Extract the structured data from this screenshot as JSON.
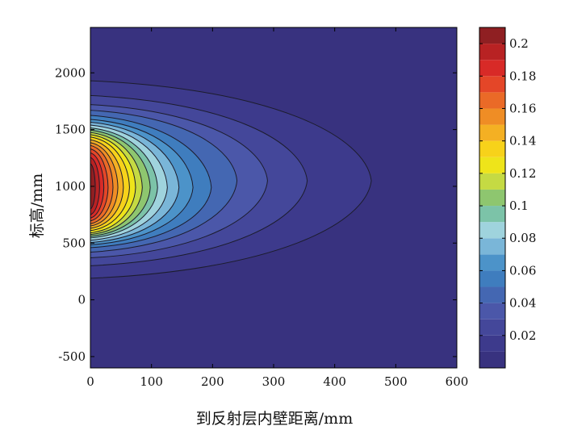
{
  "chart_data": {
    "type": "heatmap",
    "subtype": "filled-contour",
    "title": "",
    "xlabel": "到反射层内壁距离/mm",
    "ylabel": "标高/mm",
    "xlim": [
      0,
      600
    ],
    "ylim": [
      -600,
      2400
    ],
    "xticks": [
      "0",
      "100",
      "200",
      "300",
      "400",
      "500",
      "600"
    ],
    "yticks": [
      "-500",
      "0",
      "500",
      "1000",
      "1500",
      "2000"
    ],
    "grid": false,
    "colorbar": {
      "position": "right",
      "range": [
        0,
        0.21
      ],
      "ticks": [
        "0.02",
        "0.04",
        "0.06",
        "0.08",
        "0.1",
        "0.12",
        "0.14",
        "0.16",
        "0.18",
        "0.2"
      ],
      "colormap": "jet"
    },
    "background_color": "#38327f",
    "peak": {
      "x": 0,
      "y": 950,
      "value": 0.21
    },
    "contour_levels": [
      {
        "level": 0.01,
        "color": "#3d3a8c",
        "x_extent": 460,
        "y_bottom": 190,
        "y_top": 1930
      },
      {
        "level": 0.02,
        "color": "#44479a",
        "x_extent": 355,
        "y_bottom": 300,
        "y_top": 1800
      },
      {
        "level": 0.03,
        "color": "#4b57a9",
        "x_extent": 290,
        "y_bottom": 370,
        "y_top": 1720
      },
      {
        "level": 0.04,
        "color": "#4467b2",
        "x_extent": 240,
        "y_bottom": 420,
        "y_top": 1670
      },
      {
        "level": 0.05,
        "color": "#3f7dbe",
        "x_extent": 198,
        "y_bottom": 460,
        "y_top": 1625
      },
      {
        "level": 0.06,
        "color": "#4c93c9",
        "x_extent": 168,
        "y_bottom": 485,
        "y_top": 1590
      },
      {
        "level": 0.07,
        "color": "#7ab6d8",
        "x_extent": 145,
        "y_bottom": 505,
        "y_top": 1565
      },
      {
        "level": 0.08,
        "color": "#9fd3dd",
        "x_extent": 126,
        "y_bottom": 525,
        "y_top": 1540
      },
      {
        "level": 0.09,
        "color": "#7cc3a8",
        "x_extent": 110,
        "y_bottom": 545,
        "y_top": 1515
      },
      {
        "level": 0.1,
        "color": "#8ec66f",
        "x_extent": 98,
        "y_bottom": 560,
        "y_top": 1495
      },
      {
        "level": 0.11,
        "color": "#c5da43",
        "x_extent": 85,
        "y_bottom": 575,
        "y_top": 1475
      },
      {
        "level": 0.12,
        "color": "#eee41a",
        "x_extent": 74,
        "y_bottom": 590,
        "y_top": 1455
      },
      {
        "level": 0.13,
        "color": "#f7d21a",
        "x_extent": 64,
        "y_bottom": 610,
        "y_top": 1435
      },
      {
        "level": 0.14,
        "color": "#f4b023",
        "x_extent": 54,
        "y_bottom": 630,
        "y_top": 1410
      },
      {
        "level": 0.15,
        "color": "#ef8d25",
        "x_extent": 45,
        "y_bottom": 650,
        "y_top": 1385
      },
      {
        "level": 0.16,
        "color": "#ea6a27",
        "x_extent": 37,
        "y_bottom": 670,
        "y_top": 1360
      },
      {
        "level": 0.17,
        "color": "#e44628",
        "x_extent": 29,
        "y_bottom": 695,
        "y_top": 1330
      },
      {
        "level": 0.18,
        "color": "#d82a27",
        "x_extent": 22,
        "y_bottom": 720,
        "y_top": 1295
      },
      {
        "level": 0.19,
        "color": "#b82223",
        "x_extent": 15,
        "y_bottom": 750,
        "y_top": 1255
      },
      {
        "level": 0.2,
        "color": "#8f1f22",
        "x_extent": 8,
        "y_bottom": 800,
        "y_top": 1200
      }
    ]
  }
}
